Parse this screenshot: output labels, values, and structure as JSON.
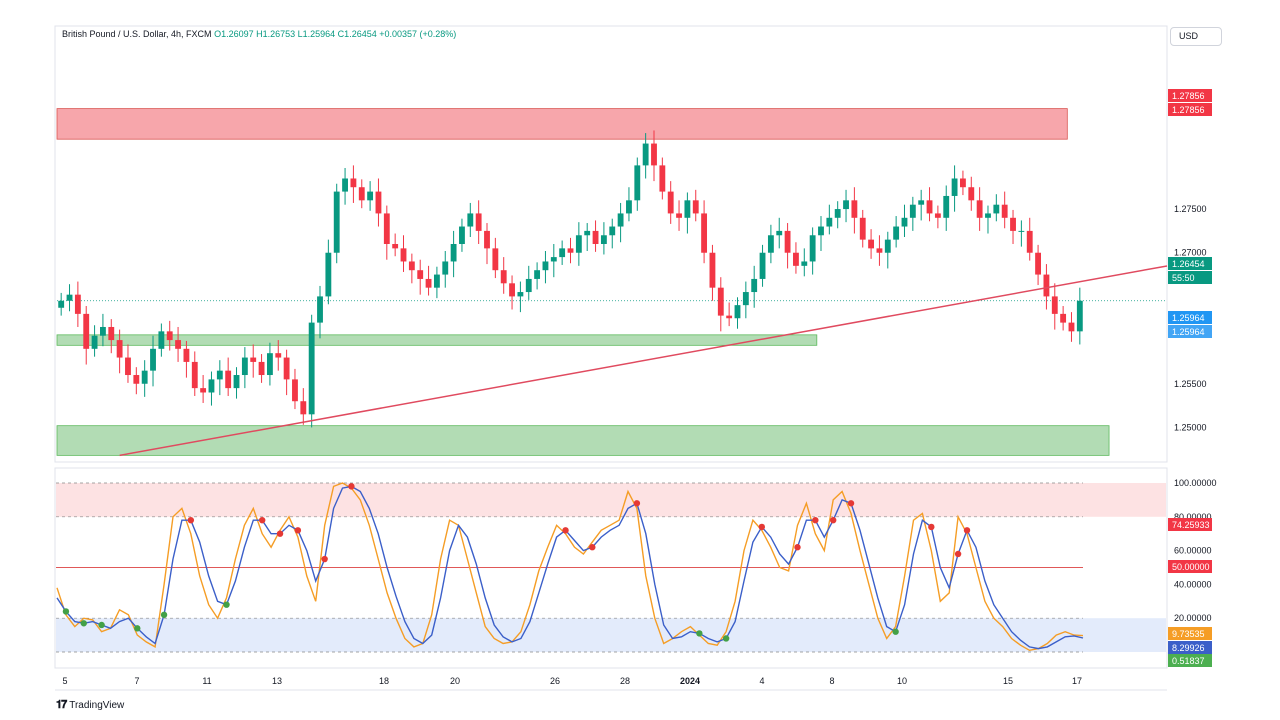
{
  "header": {
    "symbol_title": "British Pound / U.S. Dollar, 4h, FXCM",
    "ohlc": "O1.26097  H1.26753  L1.25964  C1.26454  +0.00357 (+0.28%)",
    "currency_button": "USD"
  },
  "footer": {
    "brand": "TradingView"
  },
  "colors": {
    "up": "#089981",
    "down": "#f23645",
    "supply_zone": "#f7a1a7",
    "demand_zone": "#a5d6a7",
    "trendline": "#e04a5f",
    "stoch_k": "#f59d25",
    "stoch_d": "#3b5fc9"
  },
  "chart_data": [
    {
      "type": "candlestick",
      "title": "British Pound / U.S. Dollar, 4h, FXCM",
      "ylim": [
        1.2465,
        1.2955
      ],
      "y_ticks": [
        "1.27500",
        "1.27000",
        "1.25500",
        "1.25000"
      ],
      "x_ticks": [
        "5",
        "7",
        "11",
        "13",
        "18",
        "20",
        "26",
        "28",
        "2024",
        "4",
        "8",
        "10",
        "15",
        "17"
      ],
      "price_labels": [
        {
          "text": "1.27856",
          "role": "resistance",
          "value": 1.27856
        },
        {
          "text": "1.27856",
          "role": "resistance",
          "value": 1.27856
        },
        {
          "text": "1.26454",
          "role": "last",
          "value": 1.26454
        },
        {
          "text": "55:50",
          "role": "countdown",
          "value": 1.26454
        },
        {
          "text": "1.25964",
          "role": "low",
          "value": 1.25964
        },
        {
          "text": "1.25964",
          "role": "low",
          "value": 1.25964
        }
      ],
      "closes": [
        1.2645,
        1.2652,
        1.263,
        1.259,
        1.2605,
        1.2615,
        1.26,
        1.258,
        1.256,
        1.255,
        1.2565,
        1.259,
        1.261,
        1.26,
        1.259,
        1.2575,
        1.2545,
        1.254,
        1.2555,
        1.2565,
        1.2545,
        1.256,
        1.258,
        1.2575,
        1.256,
        1.2585,
        1.258,
        1.2555,
        1.253,
        1.2515,
        1.262,
        1.265,
        1.27,
        1.277,
        1.2785,
        1.2775,
        1.276,
        1.277,
        1.2745,
        1.271,
        1.2705,
        1.269,
        1.268,
        1.267,
        1.266,
        1.2675,
        1.269,
        1.271,
        1.273,
        1.2745,
        1.2725,
        1.2705,
        1.268,
        1.2665,
        1.265,
        1.2655,
        1.267,
        1.268,
        1.269,
        1.2695,
        1.2705,
        1.27,
        1.272,
        1.2725,
        1.271,
        1.272,
        1.273,
        1.2745,
        1.276,
        1.28,
        1.2825,
        1.28,
        1.277,
        1.2745,
        1.274,
        1.276,
        1.2745,
        1.27,
        1.266,
        1.2628,
        1.2625,
        1.264,
        1.2655,
        1.267,
        1.27,
        1.272,
        1.2725,
        1.27,
        1.2685,
        1.269,
        1.272,
        1.273,
        1.274,
        1.275,
        1.276,
        1.274,
        1.2715,
        1.2705,
        1.27,
        1.2715,
        1.273,
        1.274,
        1.2755,
        1.276,
        1.2745,
        1.274,
        1.2765,
        1.2785,
        1.2775,
        1.276,
        1.274,
        1.2745,
        1.2755,
        1.274,
        1.2725,
        1.2725,
        1.27,
        1.2675,
        1.265,
        1.263,
        1.262,
        1.261,
        1.2645
      ],
      "zones": [
        {
          "kind": "supply",
          "from_index": 0,
          "to_index": 120,
          "y_range": [
            1.283,
            1.2865
          ]
        },
        {
          "kind": "demand",
          "from_index": 0,
          "to_index": 90,
          "y_range": [
            1.2594,
            1.2606
          ]
        },
        {
          "kind": "demand",
          "from_index": 0,
          "to_index": 125,
          "y_range": [
            1.2468,
            1.2502
          ]
        }
      ],
      "trendline": {
        "x": [
          7,
          125
        ],
        "y": [
          1.2468,
          1.2672
        ]
      }
    },
    {
      "type": "line",
      "title": "Stochastic",
      "ylim": [
        0,
        100
      ],
      "y_ticks": [
        "100.00000",
        "80.00000",
        "60.00000",
        "40.00000",
        "20.00000"
      ],
      "levels": [
        100,
        80,
        50,
        20,
        0
      ],
      "value_labels": [
        {
          "text": "74.25933",
          "value": 74.25933,
          "color": "#f23645"
        },
        {
          "text": "50.00000",
          "value": 50.0,
          "color": "#f23645"
        },
        {
          "text": "9.73535",
          "value": 9.73535,
          "color": "#f59d25"
        },
        {
          "text": "8.29926",
          "value": 8.29926,
          "color": "#3b5fc9"
        },
        {
          "text": "0.51837",
          "value": 0.51837,
          "color": "#4caf50"
        }
      ],
      "series": [
        {
          "name": "",
          "color": "#f59d25",
          "values": [
            38,
            22,
            15,
            20,
            19,
            12,
            14,
            25,
            22,
            10,
            6,
            3,
            40,
            80,
            85,
            70,
            45,
            28,
            20,
            32,
            55,
            75,
            85,
            70,
            62,
            72,
            80,
            68,
            45,
            30,
            75,
            98,
            100,
            97,
            90,
            75,
            55,
            35,
            20,
            8,
            3,
            5,
            22,
            55,
            78,
            75,
            55,
            35,
            15,
            8,
            5,
            6,
            12,
            28,
            48,
            62,
            75,
            70,
            62,
            58,
            65,
            72,
            75,
            78,
            95,
            85,
            45,
            20,
            5,
            8,
            12,
            15,
            10,
            5,
            4,
            12,
            30,
            60,
            78,
            72,
            62,
            50,
            48,
            75,
            88,
            70,
            60,
            90,
            95,
            82,
            60,
            40,
            20,
            8,
            15,
            45,
            78,
            82,
            60,
            30,
            35,
            80,
            70,
            50,
            30,
            20,
            15,
            8,
            4,
            1,
            2,
            5,
            10,
            12,
            10,
            9.7
          ],
          "markers": []
        },
        {
          "name": "",
          "color": "#3b5fc9",
          "values": [
            32,
            24,
            18,
            17,
            18,
            16,
            14,
            18,
            20,
            14,
            9,
            5,
            22,
            55,
            78,
            78,
            65,
            45,
            30,
            28,
            42,
            62,
            78,
            78,
            70,
            70,
            75,
            72,
            60,
            42,
            55,
            85,
            97,
            98,
            95,
            85,
            70,
            50,
            33,
            18,
            8,
            5,
            10,
            32,
            60,
            75,
            68,
            52,
            32,
            16,
            9,
            6,
            8,
            18,
            35,
            52,
            68,
            72,
            66,
            60,
            62,
            68,
            72,
            75,
            85,
            88,
            70,
            40,
            16,
            8,
            9,
            12,
            11,
            8,
            6,
            8,
            18,
            42,
            65,
            74,
            68,
            58,
            52,
            62,
            78,
            78,
            68,
            78,
            90,
            88,
            72,
            52,
            32,
            15,
            12,
            28,
            58,
            78,
            74,
            50,
            38,
            58,
            72,
            62,
            42,
            28,
            20,
            12,
            7,
            3,
            2,
            3,
            6,
            9,
            9.5,
            8.3
          ]
        }
      ]
    }
  ]
}
